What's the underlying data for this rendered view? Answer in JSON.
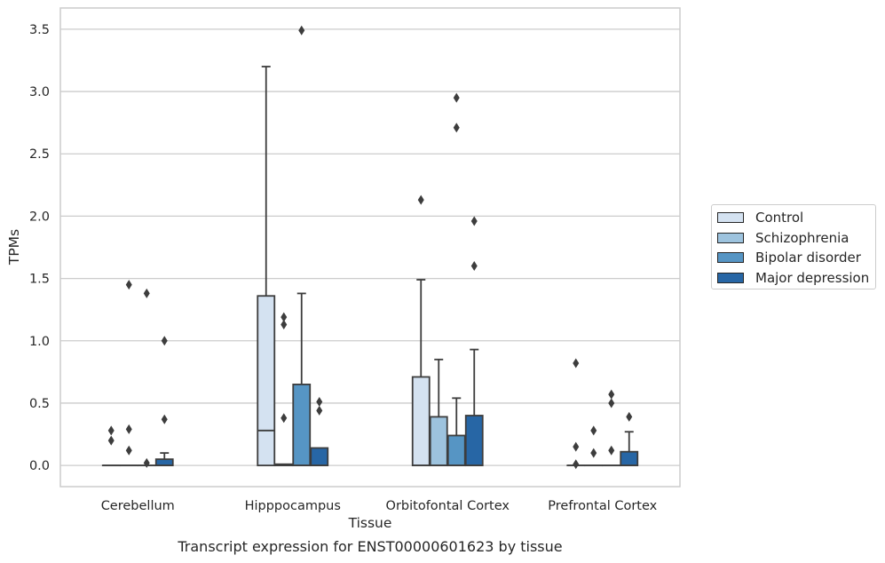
{
  "caption": "Transcript expression for ENST00000601623 by tissue",
  "chart_data": {
    "type": "box",
    "xlabel": "Tissue",
    "ylabel": "TPMs",
    "ylim": [
      -0.17,
      3.67
    ],
    "yticks": [
      "0.0",
      "0.5",
      "1.0",
      "1.5",
      "2.0",
      "2.5",
      "3.0",
      "3.5"
    ],
    "categories": [
      "Cerebellum",
      "Hipppocampus",
      "Orbitofontal Cortex",
      "Prefrontal Cortex"
    ],
    "grid": "horizontal",
    "legend_position": "right",
    "series": [
      {
        "name": "Control",
        "color": "#d4e2f1",
        "boxes": [
          {
            "q1": 0,
            "median": 0,
            "q3": 0,
            "whisker_low": 0,
            "whisker_high": 0,
            "outliers": [
              0.28,
              0.2
            ]
          },
          {
            "q1": 0,
            "median": 0.28,
            "q3": 1.36,
            "whisker_low": 0,
            "whisker_high": 3.2,
            "outliers": []
          },
          {
            "q1": 0,
            "median": 0,
            "q3": 0.71,
            "whisker_low": 0,
            "whisker_high": 1.49,
            "outliers": [
              2.13
            ]
          },
          {
            "q1": 0,
            "median": 0,
            "q3": 0,
            "whisker_low": 0,
            "whisker_high": 0,
            "outliers": [
              0.82,
              0.15,
              0.01
            ]
          }
        ]
      },
      {
        "name": "Schizophrenia",
        "color": "#9dc3de",
        "boxes": [
          {
            "q1": 0,
            "median": 0,
            "q3": 0,
            "whisker_low": 0,
            "whisker_high": 0,
            "outliers": [
              1.45,
              0.29,
              0.12
            ]
          },
          {
            "q1": 0,
            "median": 0,
            "q3": 0.01,
            "whisker_low": 0,
            "whisker_high": 0.01,
            "outliers": [
              1.19,
              1.13,
              0.38
            ]
          },
          {
            "q1": 0,
            "median": 0,
            "q3": 0.39,
            "whisker_low": 0,
            "whisker_high": 0.85,
            "outliers": []
          },
          {
            "q1": 0,
            "median": 0,
            "q3": 0,
            "whisker_low": 0,
            "whisker_high": 0,
            "outliers": [
              0.28,
              0.1
            ]
          }
        ]
      },
      {
        "name": "Bipolar disorder",
        "color": "#5695c4",
        "boxes": [
          {
            "q1": 0,
            "median": 0,
            "q3": 0,
            "whisker_low": 0,
            "whisker_high": 0,
            "outliers": [
              1.38,
              0.02
            ]
          },
          {
            "q1": 0,
            "median": 0,
            "q3": 0.65,
            "whisker_low": 0,
            "whisker_high": 1.38,
            "outliers": [
              3.49
            ]
          },
          {
            "q1": 0,
            "median": 0,
            "q3": 0.24,
            "whisker_low": 0,
            "whisker_high": 0.54,
            "outliers": [
              2.95,
              2.71
            ]
          },
          {
            "q1": 0,
            "median": 0,
            "q3": 0,
            "whisker_low": 0,
            "whisker_high": 0,
            "outliers": [
              0.57,
              0.5,
              0.12
            ]
          }
        ]
      },
      {
        "name": "Major depression",
        "color": "#2766a5",
        "boxes": [
          {
            "q1": 0,
            "median": 0,
            "q3": 0.05,
            "whisker_low": 0,
            "whisker_high": 0.1,
            "outliers": [
              1.0,
              0.37
            ]
          },
          {
            "q1": 0,
            "median": 0,
            "q3": 0.14,
            "whisker_low": 0,
            "whisker_high": 0.14,
            "outliers": [
              0.51,
              0.44
            ]
          },
          {
            "q1": 0,
            "median": 0,
            "q3": 0.4,
            "whisker_low": 0,
            "whisker_high": 0.93,
            "outliers": [
              1.96,
              1.6
            ]
          },
          {
            "q1": 0,
            "median": 0,
            "q3": 0.11,
            "whisker_low": 0,
            "whisker_high": 0.27,
            "outliers": [
              0.39
            ]
          }
        ]
      }
    ]
  }
}
